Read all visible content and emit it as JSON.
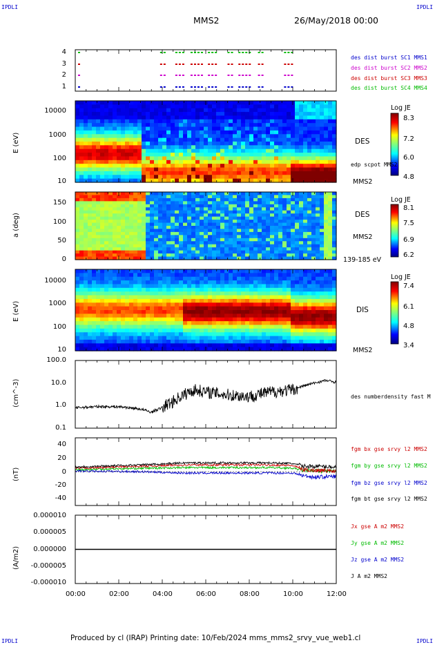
{
  "corner_labels": {
    "tl": "IPDLI",
    "tr": "IPDLI",
    "bl": "IPDLI",
    "br": "IPDLI"
  },
  "header": {
    "spacecraft": "MMS2",
    "date": "26/May/2018 00:00"
  },
  "footer": "Produced by cl (IRAP)   Printing date: 10/Feb/2024   mms_mms2_srvy_vue_web1.cl",
  "colors": {
    "red": "#cc0000",
    "magenta": "#cc00cc",
    "green": "#00bb00",
    "blue": "#0000cc",
    "black": "#000000"
  },
  "panels": {
    "burst": {
      "yticks": [
        "4",
        "3",
        "2",
        "1"
      ],
      "legend": [
        {
          "text": "des dist burst SC1 MMS1",
          "color": "#0000cc"
        },
        {
          "text": "des dist burst SC2 MMS2",
          "color": "#cc00cc"
        },
        {
          "text": "des dist burst SC3 MMS3",
          "color": "#cc0000"
        },
        {
          "text": "des dist burst SC4 MMS4",
          "color": "#00bb00"
        }
      ]
    },
    "des_energy": {
      "ylabel": "E (eV)",
      "yticks": [
        "10000",
        "1000",
        "100",
        "10"
      ],
      "right_label": "DES",
      "right_sub": "edp scpot MMS2",
      "right_bottom": "MMS2",
      "cb_title": "Log JE",
      "cb_ticks": [
        "8.3",
        "7.2",
        "6.0",
        "4.8"
      ]
    },
    "des_pitch": {
      "ylabel": "a (deg)",
      "yticks": [
        "150",
        "100",
        "50",
        "0"
      ],
      "right_label": "DES",
      "right_sub": "MMS2",
      "right_bottom": "139-185 eV",
      "cb_title": "Log JE",
      "cb_ticks": [
        "8.1",
        "7.5",
        "6.9",
        "6.2"
      ]
    },
    "dis_energy": {
      "ylabel": "E (eV)",
      "yticks": [
        "10000",
        "1000",
        "100",
        "10"
      ],
      "right_label": "DIS",
      "right_bottom": "MMS2",
      "cb_title": "Log JE",
      "cb_ticks": [
        "7.4",
        "6.1",
        "4.8",
        "3.4"
      ]
    },
    "density": {
      "ylabel": "(cm^-3)",
      "yticks": [
        "100.0",
        "10.0",
        "1.0",
        "0.1"
      ],
      "legend": "des numberdensity fast M"
    },
    "bfield": {
      "ylabel": "(nT)",
      "yticks": [
        "40",
        "20",
        "0",
        "-20",
        "-40"
      ],
      "legend": [
        {
          "text": "fgm bx gse srvy l2 MMS2",
          "color": "#cc0000"
        },
        {
          "text": "fgm by gse srvy l2 MMS2",
          "color": "#00bb00"
        },
        {
          "text": "fgm bz gse srvy l2 MMS2",
          "color": "#0000cc"
        },
        {
          "text": "fgm bt gse srvy l2 MMS2",
          "color": "#000000"
        }
      ]
    },
    "current": {
      "ylabel": "(A/m2)",
      "yticks": [
        "0.000010",
        "0.000005",
        "0.000000",
        "-0.000005",
        "-0.000010"
      ],
      "legend": [
        {
          "text": "Jx gse A m2 MMS2",
          "color": "#cc0000"
        },
        {
          "text": "Jy gse A m2 MMS2",
          "color": "#00bb00"
        },
        {
          "text": "Jz gse A m2 MMS2",
          "color": "#0000cc"
        },
        {
          "text": "J A m2 MMS2",
          "color": "#000000"
        }
      ]
    }
  },
  "xticks": [
    "00:00",
    "02:00",
    "04:00",
    "06:00",
    "08:00",
    "10:00",
    "12:00"
  ],
  "chart_data": [
    {
      "type": "scatter",
      "panel": "burst",
      "x_hours_range": [
        0,
        12
      ],
      "ylim": [
        1,
        4
      ],
      "burst_intervals_hours": [
        [
          3.9,
          4.2
        ],
        [
          4.6,
          5.0
        ],
        [
          5.3,
          5.8
        ],
        [
          6.1,
          6.5
        ],
        [
          7.0,
          7.3
        ],
        [
          7.5,
          8.1
        ],
        [
          8.4,
          8.7
        ],
        [
          9.6,
          10.0
        ]
      ]
    },
    {
      "type": "heatmap",
      "panel": "des_energy",
      "ylim": [
        10,
        20000
      ],
      "yscale": "log",
      "clim": [
        4.8,
        8.3
      ]
    },
    {
      "type": "heatmap",
      "panel": "des_pitch",
      "ylim": [
        0,
        180
      ],
      "clim": [
        6.2,
        8.1
      ]
    },
    {
      "type": "heatmap",
      "panel": "dis_energy",
      "ylim": [
        10,
        20000
      ],
      "yscale": "log",
      "clim": [
        3.4,
        7.4
      ]
    },
    {
      "type": "line",
      "panel": "density",
      "yscale": "log",
      "ylim": [
        0.1,
        100
      ],
      "series": [
        {
          "x": [
            0,
            1,
            2,
            3,
            3.5,
            4,
            4.5,
            5,
            5.5,
            6,
            7,
            8,
            9,
            10,
            11,
            11.5,
            12
          ],
          "y": [
            0.8,
            0.9,
            0.9,
            0.7,
            0.5,
            0.8,
            1.5,
            3,
            5,
            4,
            3,
            2.5,
            4,
            5,
            10,
            13,
            11
          ]
        }
      ]
    },
    {
      "type": "line",
      "panel": "bfield",
      "ylim": [
        -50,
        50
      ],
      "series": [
        {
          "x": [
            0,
            3,
            5,
            7,
            9,
            10,
            10.5,
            11,
            12
          ],
          "y": [
            5,
            8,
            10,
            10,
            10,
            9,
            3,
            2,
            1
          ]
        },
        {
          "x": [
            0,
            3,
            5,
            7,
            9,
            10,
            10.5,
            11,
            12
          ],
          "y": [
            3,
            5,
            6,
            6,
            6,
            5,
            2,
            1,
            1
          ]
        },
        {
          "x": [
            0,
            3,
            5,
            7,
            9,
            10,
            10.5,
            11,
            12
          ],
          "y": [
            1,
            0,
            -2,
            -2,
            -2,
            -2,
            -6,
            -8,
            -7
          ]
        },
        {
          "x": [
            0,
            3,
            5,
            7,
            9,
            10,
            10.5,
            11,
            12
          ],
          "y": [
            7,
            10,
            13,
            13,
            13,
            12,
            8,
            8,
            7
          ]
        }
      ]
    },
    {
      "type": "line",
      "panel": "current",
      "ylim": [
        -1e-05,
        1e-05
      ],
      "series": [
        {
          "x": [
            0,
            12
          ],
          "y": [
            0,
            0
          ]
        }
      ]
    }
  ]
}
